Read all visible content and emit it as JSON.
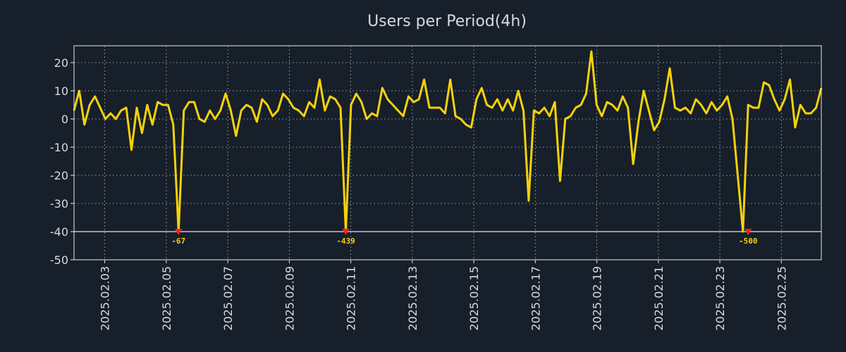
{
  "chart_data": {
    "type": "line",
    "title": "Users per Period(4h)",
    "xlabel": "",
    "ylabel": "",
    "ylim": [
      -50,
      26
    ],
    "yticks": [
      -50,
      -40,
      -30,
      -20,
      -10,
      0,
      10,
      20
    ],
    "x_range_days": [
      0,
      24.3
    ],
    "x_start_date": "2025.02.02",
    "xticks": [
      {
        "label": "2025.02.03",
        "day": 1
      },
      {
        "label": "2025.02.05",
        "day": 3
      },
      {
        "label": "2025.02.07",
        "day": 5
      },
      {
        "label": "2025.02.09",
        "day": 7
      },
      {
        "label": "2025.02.11",
        "day": 9
      },
      {
        "label": "2025.02.13",
        "day": 11
      },
      {
        "label": "2025.02.15",
        "day": 13
      },
      {
        "label": "2025.02.17",
        "day": 15
      },
      {
        "label": "2025.02.19",
        "day": 17
      },
      {
        "label": "2025.02.21",
        "day": 19
      },
      {
        "label": "2025.02.23",
        "day": 21
      },
      {
        "label": "2025.02.25",
        "day": 23
      }
    ],
    "grid": true,
    "reference_line": -40,
    "series": [
      {
        "name": "Users",
        "color": "#f5d20a",
        "values": [
          3,
          10,
          -2,
          5,
          8,
          4,
          0,
          2,
          0,
          3,
          4,
          -11,
          4,
          -5,
          5,
          -2,
          6,
          5,
          5,
          -2,
          -40,
          3,
          6,
          6,
          0,
          -1,
          3,
          0,
          3,
          9,
          3,
          -6,
          3,
          5,
          4,
          -1,
          7,
          5,
          1,
          3,
          9,
          7,
          4,
          3,
          1,
          6,
          4,
          14,
          3,
          8,
          7,
          4,
          -40,
          5,
          9,
          6,
          0,
          2,
          1,
          11,
          7,
          5,
          3,
          1,
          8,
          6,
          7,
          14,
          4,
          4,
          4,
          2,
          14,
          1,
          0,
          -2,
          -3,
          7,
          11,
          5,
          4,
          7,
          3,
          7,
          3,
          10,
          3,
          -29,
          3,
          2,
          4,
          1,
          6,
          -22,
          0,
          1,
          4,
          5,
          9,
          24,
          5,
          1,
          6,
          5,
          3,
          8,
          4,
          -16,
          -1,
          10,
          3,
          -4,
          -1,
          7,
          18,
          4,
          3,
          4,
          2,
          7,
          5,
          2,
          6,
          3,
          5,
          8,
          0,
          -20,
          -40,
          5,
          4,
          4,
          13,
          12,
          7,
          3,
          7,
          14,
          -3,
          5,
          2,
          2,
          4,
          11
        ],
        "annotations": [
          {
            "index": 20,
            "label": "-67",
            "y": -40
          },
          {
            "index": 52,
            "label": "-439",
            "y": -40
          },
          {
            "index": 129,
            "label": "-500",
            "y": -40
          }
        ]
      }
    ]
  }
}
